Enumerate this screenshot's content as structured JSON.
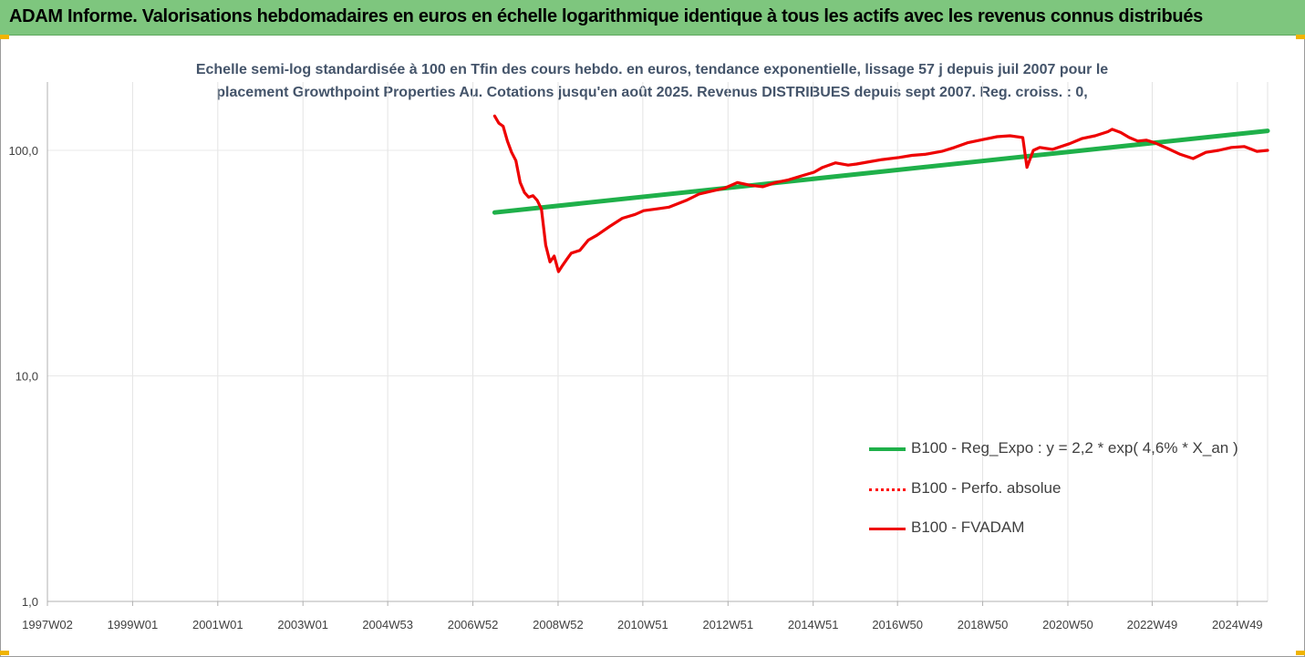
{
  "banner": {
    "title": "ADAM Informe. Valorisations hebdomadaires en euros en échelle logarithmique identique à tous les actifs avec les revenus connus distribués"
  },
  "colors": {
    "banner_bg": "#7ec67e",
    "trend": "#1fb04a",
    "perf": "#ff0000",
    "fvadam": "#ee0000",
    "subtitle": "#44546a"
  },
  "chart_data": {
    "type": "line",
    "title_line1": "Echelle semi-log standardisée à 100 en Tfin des cours hebdo. en euros, tendance exponentielle, lissage 57 j depuis juil 2007 pour le",
    "title_line2": "placement Growthpoint Properties Au. Cotations jusqu'en août 2025. Revenus DISTRIBUES depuis sept 2007. Reg. croiss. : 0,",
    "y_scale": "log",
    "ylim": [
      1,
      200
    ],
    "y_ticks": [
      {
        "value": 1,
        "label": "1,0"
      },
      {
        "value": 10,
        "label": "10,0"
      },
      {
        "value": 100,
        "label": "100,0"
      }
    ],
    "xlim": [
      1997.0,
      2025.65
    ],
    "x_ticks": [
      {
        "value": 1997.0,
        "label": "1997W02"
      },
      {
        "value": 1999.0,
        "label": "1999W01"
      },
      {
        "value": 2001.0,
        "label": "2001W01"
      },
      {
        "value": 2003.0,
        "label": "2003W01"
      },
      {
        "value": 2004.99,
        "label": "2004W53"
      },
      {
        "value": 2006.99,
        "label": "2006W52"
      },
      {
        "value": 2008.99,
        "label": "2008W52"
      },
      {
        "value": 2010.98,
        "label": "2010W51"
      },
      {
        "value": 2012.98,
        "label": "2012W51"
      },
      {
        "value": 2014.98,
        "label": "2014W51"
      },
      {
        "value": 2016.96,
        "label": "2016W50"
      },
      {
        "value": 2018.96,
        "label": "2018W50"
      },
      {
        "value": 2020.96,
        "label": "2020W50"
      },
      {
        "value": 2022.94,
        "label": "2022W49"
      },
      {
        "value": 2024.94,
        "label": "2024W49"
      }
    ],
    "grid": "vertical",
    "legend_position": "lower-right",
    "series": [
      {
        "name": "B100 - Reg_Expo : y = 2,2 * exp( 4,6% *  X_an )",
        "style": "solid-thick",
        "color": "#1fb04a",
        "x": [
          2007.5,
          2025.65
        ],
        "y": [
          53,
          122
        ]
      },
      {
        "name": "B100 - Perfo. absolue",
        "style": "dotted",
        "color": "#ff0000",
        "x": [],
        "y": []
      },
      {
        "name": "B100 - FVADAM",
        "style": "solid",
        "color": "#ee0000",
        "x": [
          2007.5,
          2007.6,
          2007.7,
          2007.8,
          2007.9,
          2008.0,
          2008.1,
          2008.2,
          2008.3,
          2008.4,
          2008.5,
          2008.6,
          2008.7,
          2008.8,
          2008.9,
          2009.0,
          2009.1,
          2009.2,
          2009.3,
          2009.5,
          2009.7,
          2009.9,
          2010.2,
          2010.5,
          2010.8,
          2011.0,
          2011.3,
          2011.6,
          2012.0,
          2012.3,
          2012.6,
          2012.9,
          2013.2,
          2013.5,
          2013.8,
          2014.1,
          2014.4,
          2014.7,
          2015.0,
          2015.2,
          2015.5,
          2015.8,
          2016.0,
          2016.3,
          2016.6,
          2017.0,
          2017.3,
          2017.6,
          2018.0,
          2018.3,
          2018.6,
          2019.0,
          2019.3,
          2019.6,
          2019.9,
          2020.0,
          2020.15,
          2020.3,
          2020.6,
          2021.0,
          2021.3,
          2021.6,
          2021.9,
          2022.0,
          2022.2,
          2022.4,
          2022.6,
          2022.8,
          2023.0,
          2023.3,
          2023.6,
          2023.9,
          2024.2,
          2024.5,
          2024.8,
          2025.1,
          2025.4,
          2025.65
        ],
        "y": [
          142,
          132,
          128,
          110,
          98,
          90,
          72,
          65,
          62,
          63,
          60,
          55,
          38,
          32,
          34,
          29,
          31,
          33,
          35,
          36,
          40,
          42,
          46,
          50,
          52,
          54,
          55,
          56,
          60,
          64,
          66,
          68,
          72,
          70,
          69,
          72,
          74,
          77,
          80,
          84,
          88,
          86,
          87,
          89,
          91,
          93,
          95,
          96,
          99,
          103,
          108,
          112,
          115,
          116,
          114,
          84,
          100,
          103,
          101,
          107,
          113,
          116,
          121,
          124,
          120,
          114,
          110,
          111,
          108,
          102,
          96,
          92,
          98,
          100,
          103,
          104,
          99,
          100
        ]
      }
    ]
  }
}
